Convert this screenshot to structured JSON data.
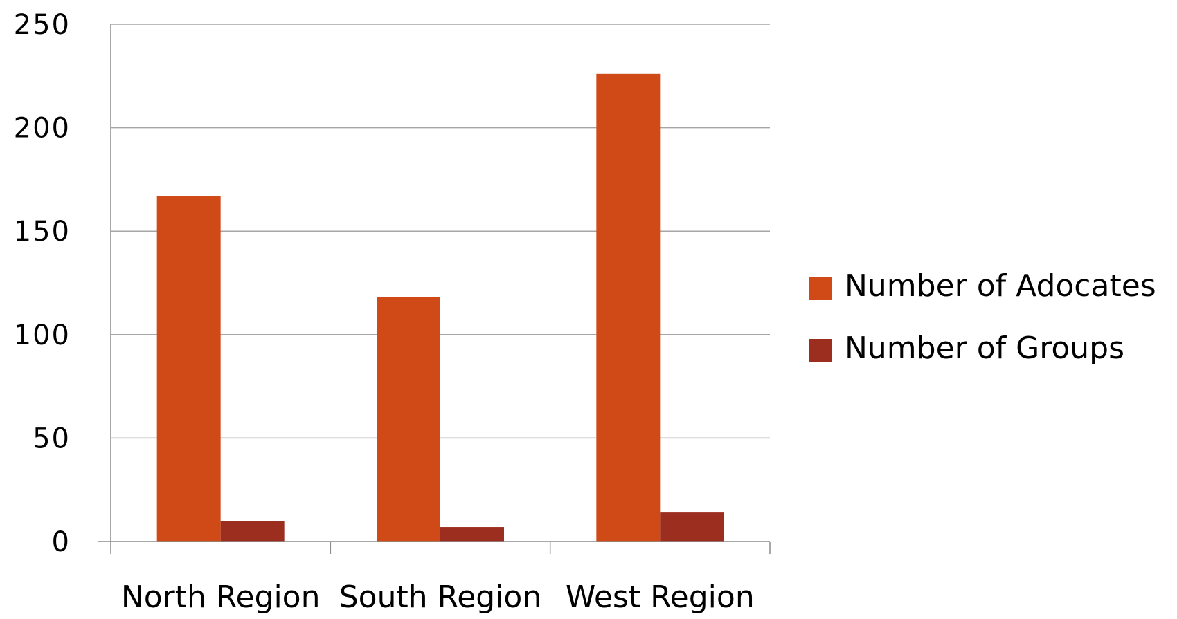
{
  "chart_data": {
    "type": "bar",
    "categories": [
      "North Region",
      "South Region",
      "West Region"
    ],
    "series": [
      {
        "name": "Number of Adocates",
        "values": [
          167,
          118,
          226
        ],
        "color": "#d04a17"
      },
      {
        "name": "Number of Groups",
        "values": [
          10,
          7,
          14
        ],
        "color": "#9c2e20"
      }
    ],
    "ylim": [
      0,
      250
    ],
    "yticks": [
      0,
      50,
      100,
      150,
      200,
      250
    ],
    "grid": true,
    "legend_position": "right"
  }
}
